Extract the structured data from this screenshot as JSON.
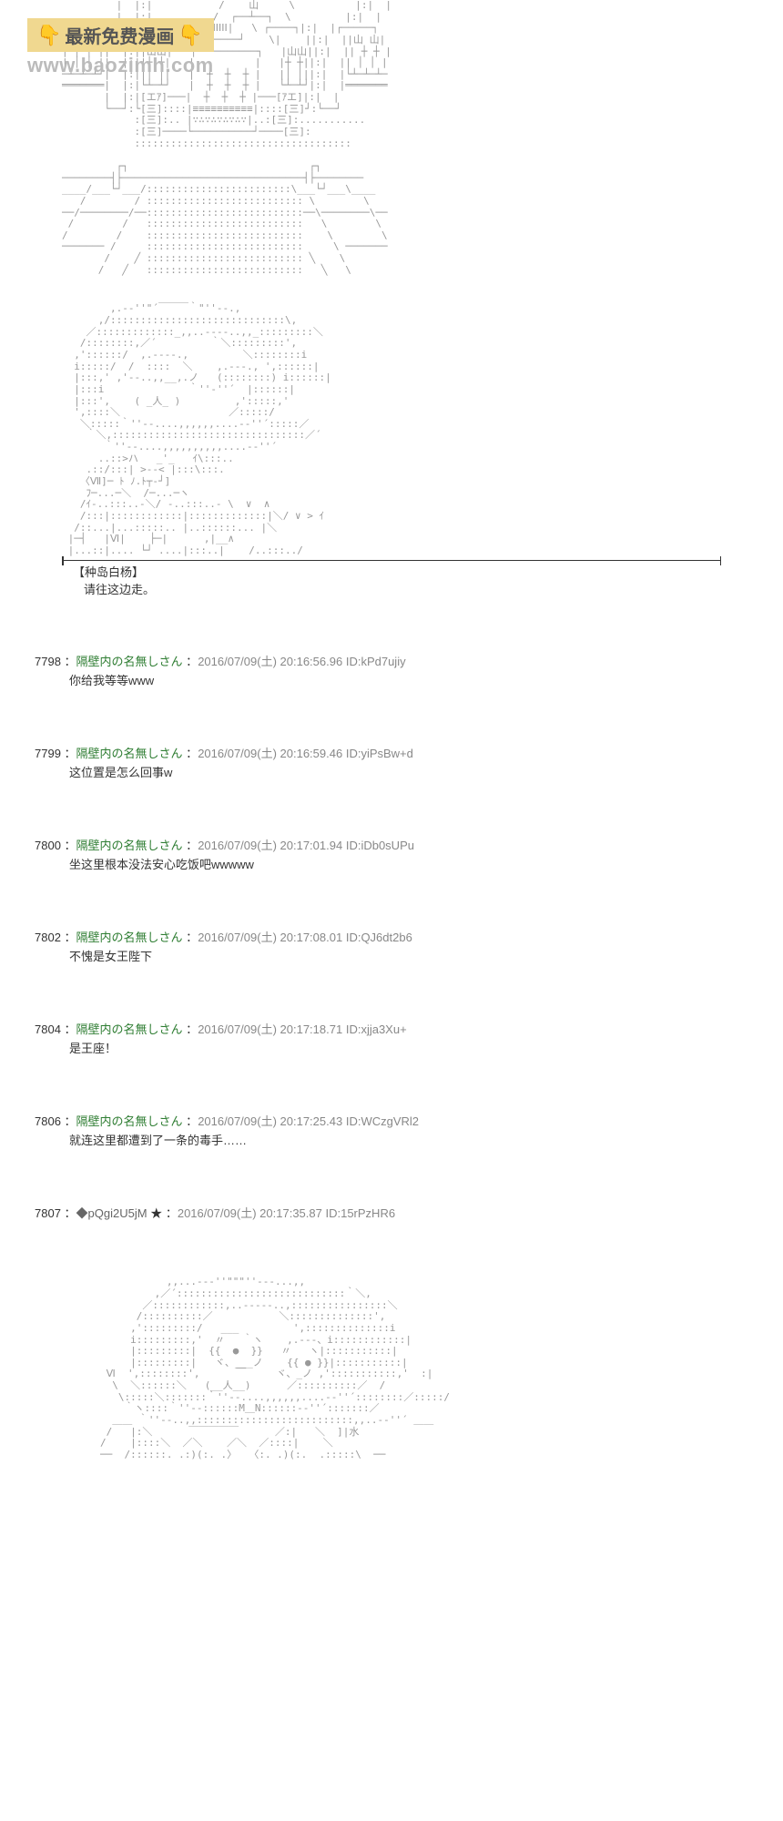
{
  "watermark": {
    "banner_text": "最新免费漫画",
    "url": "www.baozimh.com",
    "emoji": "👇"
  },
  "ascii_castle": "         |  |:|           /    山     \\          |:|  |\n         |  |:|          /  ┌──┴──┐  \\         |:|  |\n┌─────┐|  |:|┌────┐ /   |ⅠⅠⅠⅠⅠ|   \\ ┌────┐|:|  |┌─────┐\n|山 山||  |:||    |/    └─────┘    \\|    ||:|  ||山 山|\n| ┼ ┼ ||  |:||山山|   ┌──────────┐   |山山||:|  || ┼ ┼ |\n| │ │ ||  |:||┼ ┼|   |          |   |┼ ┼||:|  || │ │ |\n─┴─┴─┴┘|  |:||│ │|   |  ┼  ┼  ┼ |   |│ │||:|  |└┴─┴─┴─\n═══════|  |:|└┴─┴┘   |  ┼  ┼  ┼ |   └┴─┴┘|:|  |═══════\n       |  |:|[エｱ]───|  ┼  ┼  ┼ |───[ｱエ]|:|  |\n       └──┘:└[三]::::|≡≡≡≡≡≡≡≡≡≡|::::[三]┘:└──┘\n            :[三]:.. |∵∴∵∴∵∴∵∴∵|..:[三]:...........\n            :[三]────└──────────┘────[三]:\n            ::::::::::::::::::::::::::::::::::::\n\n         ┌┐                              ┌┐\n────────┤├──────────────────────────────┤├────────\n____/___└┘___/::::::::::::::::::::::::\\___└┘___\\____\n   /        / :::::::::::::::::::::::::: \\        \\\n──/────────/──::::::::::::::::::::::::::──\\────────\\──\n /        /   ::::::::::::::::::::::::::   \\        \\\n/        /    ::::::::::::::::::::::::::    \\        \\\n─────── /     ::::::::::::::::::::::::::     \\ ───────\n       /    ╱ :::::::::::::::::::::::::: ╲    \\\n      /   ╱   ::::::::::::::::::::::::::   ╲   \\",
  "ascii_character": "        ,.-‐''\"´￣￣￣｀\"''‐-.,\n      ,/:::::::::::::::::::::::::::::\\,\n    ／:::::::::::::_,,..-‐‐-..,,_:::::::::＼\n   /::::::::,／´         ｀＼:::::::::',\n  ,'::::::/  ,.-‐‐-.,         ＼::::::::i\n  i:::::/  /  ::::  ＼    ,.-‐-., ',::::::|\n  |:::,' ,'‐-..,,__,.ノ   (::::::::) i::::::|\n  |:::i              ｀''‐''´  |::::::|\n  |:::',    ( _人_ )         ,':::::,'\n  ',::::＼                  ／:::::/\n   ＼:::::｀''‐-....,,,,,,....-‐''´:::::／\n    ｀＼,::::::::::::::::::::::::::::::::／´\n       ｀''‐-....,,,,,,,,,,....-‐''´\n      ..::>ハ   _'_   ｲ\\:::..\n    .::/:::| >--< |:::\\:::.\n   〈Ⅶ]─ ﾄ ﾉ.ﾄ┬‐┘]\n    ﾌ─...─＼  /─...─ヽ\n   /ｲ-..:::..-＼/ -..:::..- \\  ∨  ∧\n   /:::|::::::::::::|:::::::::::::|＼/ ∨ > ｲ\n  /::...|...:::::.. |..::::::... |＼\n |─┤   |Ⅵ|    ├─|      ,|__∧\n |...::|.... └┘ ....|:::..|    /..:::../",
  "caption": {
    "name": "【种岛白杨】",
    "text": "请往这边走。"
  },
  "posts": [
    {
      "num": "7798",
      "name": "隔壁内の名無しさん",
      "date": "2016/07/09(土) 20:16:56.96",
      "id": "ID:kPd7ujiy",
      "body": "你给我等等www"
    },
    {
      "num": "7799",
      "name": "隔壁内の名無しさん",
      "date": "2016/07/09(土) 20:16:59.46",
      "id": "ID:yiPsBw+d",
      "body": "这位置是怎么回事w"
    },
    {
      "num": "7800",
      "name": "隔壁内の名無しさん",
      "date": "2016/07/09(土) 20:17:01.94",
      "id": "ID:iDb0sUPu",
      "body": "坐这里根本没法安心吃饭吧wwwww"
    },
    {
      "num": "7802",
      "name": "隔壁内の名無しさん",
      "date": "2016/07/09(土) 20:17:08.01",
      "id": "ID:QJ6dt2b6",
      "body": "不愧是女王陛下"
    },
    {
      "num": "7804",
      "name": "隔壁内の名無しさん",
      "date": "2016/07/09(土) 20:17:18.71",
      "id": "ID:xjja3Xu+",
      "body": "是王座！"
    },
    {
      "num": "7806",
      "name": "隔壁内の名無しさん",
      "date": "2016/07/09(土) 20:17:25.43",
      "id": "ID:WCzgVRl2",
      "body": "就连这里都遭到了一条的毒手……"
    }
  ],
  "special_post": {
    "num": "7807",
    "name": "◆pQgi2U5jM",
    "star": "★",
    "date": "2016/07/09(土) 20:17:35.87",
    "id": "ID:15rPzHR6"
  },
  "ascii_bottom": "           ,,...-‐‐''\"\"\"''‐‐-...,,\n         ,／´::::::::::::::::::::::::::::｀＼,\n       ／::::::::::::,..-‐‐‐-..,::::::::::::::::＼\n      /::::::::::／           ＼::::::::::::::',\n     ,':::::::::/   ___         ',::::::::::::::i\n     i:::::::::,'  〃   ｀ヽ    ,.-‐-、i::::::::::::|\n     |:::::::::|  {{  ●  }}   〃   ヽ|:::::::::::|\n     |:::::::::|   ヾ、___ノ    {{ ● }}|:::::::::::|\n Ⅵ  ',::::::::',      ￣     ヾ、_ノ ,':::::::::::,'  :|\n  \\  ＼::::::＼   (__人__)      ／::::::::::／  /\n   \\:::::＼:::::::｀''‐-....,,,,,,....-‐''´::::::::／:::::/\n    ｀ヽ::::｀''‐-::::::M＿N::::::-‐''´:::::::／\n  ＿＿ ｀''‐-..,,::::::::::::::::::::::::::,,..-‐''´ ＿＿\n /   |:＼      ￣￣￣￣￣      ／:|   ＼  ]|水\n/    |::::＼  ／＼    ／＼  ／::::|    ＼\n──  /::::::. .:)(:. .〉  〈:. .)(:.  .:::::\\  ──",
  "colors": {
    "name_color": "#2e7d32",
    "meta_color": "#888888",
    "text_color": "#333333",
    "ascii_color": "#999999",
    "banner_bg": "#f0d890",
    "watermark_url": "#bbbbbb"
  }
}
